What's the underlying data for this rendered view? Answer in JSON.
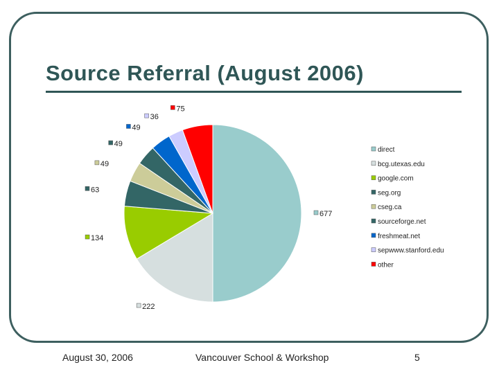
{
  "slide": {
    "title": "Source Referral (August 2006)",
    "footer_date": "August 30, 2006",
    "footer_center": "Vancouver School & Workshop",
    "page_number": "5"
  },
  "chart_data": {
    "type": "pie",
    "title": "",
    "legend_position": "right",
    "slices": [
      {
        "label": "direct",
        "value": 677,
        "color": "#99cccc"
      },
      {
        "label": "bcg.utexas.edu",
        "value": 222,
        "color": "#d6dfdf"
      },
      {
        "label": "google.com",
        "value": 134,
        "color": "#99cc00"
      },
      {
        "label": "seg.org",
        "value": 63,
        "color": "#336666"
      },
      {
        "label": "cseg.ca",
        "value": 49,
        "color": "#cccc99"
      },
      {
        "label": "sourceforge.net",
        "value": 49,
        "color": "#336666"
      },
      {
        "label": "freshmeat.net",
        "value": 49,
        "color": "#0066cc"
      },
      {
        "label": "sepwww.stanford.edu",
        "value": 36,
        "color": "#ccccff"
      },
      {
        "label": "other",
        "value": 75,
        "color": "#ff0000"
      }
    ]
  }
}
